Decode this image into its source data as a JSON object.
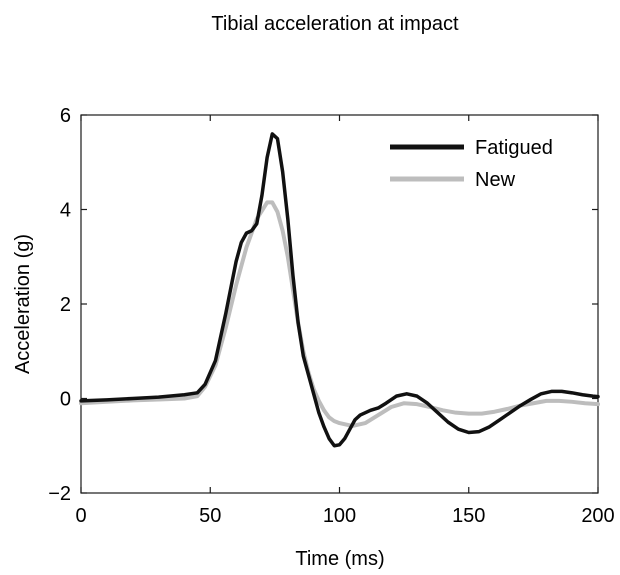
{
  "chart_data": {
    "type": "line",
    "title": "Tibial acceleration at impact",
    "xlabel": "Time (ms)",
    "ylabel": "Acceleration (g)",
    "xlim": [
      0,
      200
    ],
    "ylim": [
      -2,
      6
    ],
    "xticks": [
      0,
      50,
      100,
      150,
      200
    ],
    "xtick_labels": [
      "0",
      "50",
      "100",
      "150",
      "200"
    ],
    "yticks": [
      -2,
      0,
      2,
      4,
      6
    ],
    "ytick_labels": [
      "−2",
      "0",
      "2",
      "4",
      "6"
    ],
    "grid": false,
    "legend_position": "top-right",
    "series": [
      {
        "name": "Fatigued",
        "color": "#111111",
        "x": [
          0,
          10,
          20,
          30,
          40,
          45,
          48,
          52,
          56,
          60,
          62,
          64,
          66,
          68,
          70,
          72,
          74,
          76,
          78,
          80,
          82,
          84,
          86,
          88,
          90,
          92,
          94,
          96,
          98,
          100,
          102,
          104,
          106,
          108,
          110,
          112,
          115,
          118,
          122,
          126,
          130,
          134,
          138,
          142,
          146,
          150,
          154,
          158,
          162,
          166,
          170,
          174,
          178,
          182,
          186,
          190,
          194,
          198,
          200
        ],
        "y": [
          -0.05,
          -0.03,
          0.0,
          0.03,
          0.08,
          0.12,
          0.3,
          0.8,
          1.8,
          2.9,
          3.3,
          3.5,
          3.55,
          3.7,
          4.3,
          5.1,
          5.6,
          5.5,
          4.8,
          3.8,
          2.6,
          1.6,
          0.9,
          0.5,
          0.1,
          -0.3,
          -0.6,
          -0.85,
          -1.0,
          -0.98,
          -0.85,
          -0.65,
          -0.45,
          -0.35,
          -0.3,
          -0.25,
          -0.2,
          -0.1,
          0.05,
          0.1,
          0.05,
          -0.1,
          -0.3,
          -0.5,
          -0.65,
          -0.72,
          -0.7,
          -0.6,
          -0.45,
          -0.3,
          -0.15,
          -0.02,
          0.1,
          0.15,
          0.15,
          0.12,
          0.08,
          0.05,
          0.04
        ]
      },
      {
        "name": "New",
        "color": "#bdbdbd",
        "x": [
          0,
          10,
          20,
          30,
          40,
          45,
          48,
          52,
          56,
          60,
          64,
          68,
          72,
          74,
          76,
          78,
          80,
          82,
          84,
          86,
          88,
          90,
          92,
          94,
          96,
          98,
          100,
          105,
          110,
          115,
          120,
          125,
          130,
          135,
          140,
          145,
          150,
          155,
          160,
          165,
          170,
          175,
          180,
          185,
          190,
          195,
          200
        ],
        "y": [
          -0.1,
          -0.07,
          -0.04,
          -0.02,
          0.0,
          0.05,
          0.25,
          0.7,
          1.5,
          2.4,
          3.2,
          3.8,
          4.15,
          4.15,
          3.95,
          3.55,
          3.0,
          2.3,
          1.6,
          1.0,
          0.55,
          0.2,
          -0.05,
          -0.25,
          -0.4,
          -0.48,
          -0.52,
          -0.58,
          -0.52,
          -0.35,
          -0.18,
          -0.1,
          -0.12,
          -0.18,
          -0.25,
          -0.3,
          -0.32,
          -0.32,
          -0.28,
          -0.22,
          -0.15,
          -0.1,
          -0.05,
          -0.05,
          -0.07,
          -0.1,
          -0.12
        ]
      }
    ]
  }
}
